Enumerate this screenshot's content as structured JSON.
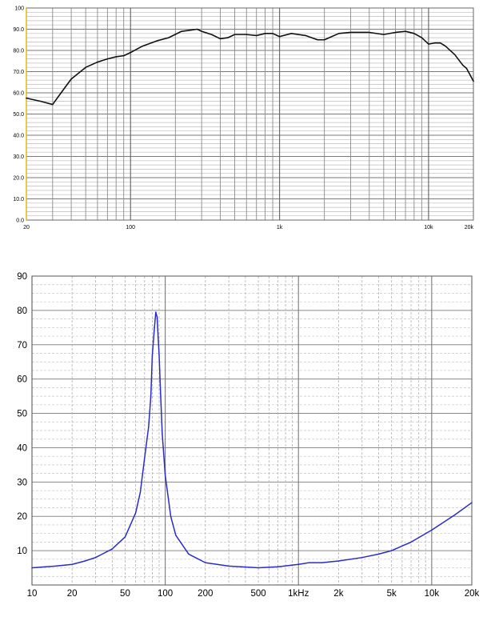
{
  "chart_data": [
    {
      "type": "line",
      "title": "",
      "xlabel": "",
      "ylabel": "",
      "x_scale": "log",
      "xlim": [
        20,
        20000
      ],
      "ylim": [
        0,
        100
      ],
      "grid": true,
      "line_color": "#111111",
      "x_tick_labels": [
        {
          "x": 20,
          "label": "20"
        },
        {
          "x": 100,
          "label": "100"
        },
        {
          "x": 1000,
          "label": "1k"
        },
        {
          "x": 10000,
          "label": "10k"
        },
        {
          "x": 20000,
          "label": "20k"
        }
      ],
      "y_tick_labels": [
        {
          "y": 0,
          "label": "0.0"
        },
        {
          "y": 10,
          "label": "10.0"
        },
        {
          "y": 20,
          "label": "20.0"
        },
        {
          "y": 30,
          "label": "30.0"
        },
        {
          "y": 40,
          "label": "40.0"
        },
        {
          "y": 50,
          "label": "50.0"
        },
        {
          "y": 60,
          "label": "60.0"
        },
        {
          "y": 70,
          "label": "70.0"
        },
        {
          "y": 80,
          "label": "80.0"
        },
        {
          "y": 90,
          "label": "90.0"
        },
        {
          "y": 100,
          "label": "100"
        }
      ],
      "series": [
        {
          "x": [
            20,
            25,
            30,
            35,
            40,
            50,
            60,
            70,
            80,
            90,
            100,
            120,
            150,
            180,
            220,
            250,
            280,
            300,
            350,
            400,
            450,
            500,
            600,
            700,
            800,
            900,
            1000,
            1200,
            1500,
            1800,
            2000,
            2500,
            3000,
            4000,
            5000,
            6000,
            7000,
            8000,
            9000,
            10000,
            11000,
            12000,
            13000,
            15000,
            17000,
            18000,
            20000
          ],
          "y": [
            57.5,
            56,
            54.5,
            61,
            66.5,
            72,
            74.5,
            76,
            77,
            77.5,
            79,
            82,
            84.5,
            86,
            89,
            89.5,
            90,
            89,
            87.5,
            85.5,
            86,
            87.5,
            87.5,
            87,
            88,
            88,
            86.5,
            88,
            87,
            85,
            85,
            88,
            88.5,
            88.5,
            87.5,
            88.5,
            89,
            88,
            86,
            83,
            83.5,
            83.5,
            82,
            78,
            73,
            71.5,
            65.5
          ]
        }
      ]
    },
    {
      "type": "line",
      "title": "",
      "xlabel": "",
      "ylabel": "",
      "x_scale": "log",
      "xlim": [
        10,
        20000
      ],
      "ylim": [
        0,
        90
      ],
      "grid": true,
      "line_color": "#2b2bcc",
      "x_tick_labels": [
        {
          "x": 10,
          "label": "10"
        },
        {
          "x": 20,
          "label": "20"
        },
        {
          "x": 50,
          "label": "50"
        },
        {
          "x": 100,
          "label": "100"
        },
        {
          "x": 200,
          "label": "200"
        },
        {
          "x": 500,
          "label": "500"
        },
        {
          "x": 1000,
          "label": "1kHz"
        },
        {
          "x": 2000,
          "label": "2k"
        },
        {
          "x": 5000,
          "label": "5k"
        },
        {
          "x": 10000,
          "label": "10k"
        },
        {
          "x": 20000,
          "label": "20k"
        }
      ],
      "y_tick_labels": [
        {
          "y": 10,
          "label": "10"
        },
        {
          "y": 20,
          "label": "20"
        },
        {
          "y": 30,
          "label": "30"
        },
        {
          "y": 40,
          "label": "40"
        },
        {
          "y": 50,
          "label": "50"
        },
        {
          "y": 60,
          "label": "60"
        },
        {
          "y": 70,
          "label": "70"
        },
        {
          "y": 80,
          "label": "80"
        },
        {
          "y": 90,
          "label": "90"
        }
      ],
      "series": [
        {
          "x": [
            10,
            15,
            20,
            25,
            30,
            40,
            50,
            60,
            65,
            70,
            75,
            78,
            80,
            83,
            85,
            87,
            88,
            90,
            92,
            95,
            100,
            110,
            120,
            150,
            200,
            300,
            500,
            700,
            1000,
            1200,
            1500,
            2000,
            3000,
            4000,
            5000,
            7000,
            10000,
            15000,
            20000
          ],
          "y": [
            5,
            5.5,
            6,
            7,
            8,
            10.5,
            14,
            21,
            27,
            37,
            46,
            55,
            67,
            75,
            79.5,
            78,
            74,
            67,
            57,
            44,
            32,
            20,
            14.5,
            9,
            6.5,
            5.5,
            5,
            5.3,
            6,
            6.5,
            6.5,
            7,
            8,
            9,
            10,
            12.5,
            16,
            20.5,
            24
          ]
        }
      ]
    }
  ]
}
